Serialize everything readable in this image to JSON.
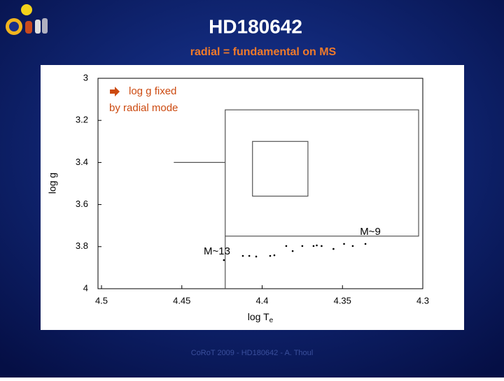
{
  "slide": {
    "title": "HD180642",
    "subtitle": "radial = fundamental on MS",
    "footer": "CoRoT 2009 - HD180642 - A. Thoul"
  },
  "chart_data": {
    "type": "scatter",
    "xlabel": "log T",
    "xlabel_sub": "e",
    "ylabel": "log g",
    "xlim": [
      4.5,
      4.3
    ],
    "xticks": [
      4.5,
      4.45,
      4.4,
      4.35,
      4.3
    ],
    "ylim": [
      3,
      4
    ],
    "yticks": [
      3,
      3.2,
      3.4,
      3.6,
      3.8,
      4
    ],
    "x": [
      4.4238,
      4.412,
      4.408,
      4.4037,
      4.395,
      4.3924,
      4.385,
      4.381,
      4.375,
      4.368,
      4.366,
      4.363,
      4.3556,
      4.349,
      4.3436,
      4.3357
    ],
    "y": [
      3.864,
      3.844,
      3.844,
      3.847,
      3.844,
      3.841,
      3.797,
      3.821,
      3.797,
      3.797,
      3.794,
      3.797,
      3.811,
      3.787,
      3.797,
      3.787
    ],
    "color": "#000000",
    "boxes": [
      {
        "x": [
          4.423,
          4.3026
        ],
        "y": [
          3.15,
          3.75
        ]
      },
      {
        "x": [
          4.406,
          4.3715
        ],
        "y": [
          3.3,
          3.56
        ]
      }
    ],
    "lines": [
      {
        "x": [
          4.455,
          4.423
        ],
        "y": [
          3.4,
          3.4
        ]
      },
      {
        "x": [
          4.423,
          4.423
        ],
        "y": [
          3.75,
          4
        ]
      }
    ],
    "annotations": [
      "M~13",
      "M~9"
    ],
    "note": [
      "log g fixed",
      "by radial mode"
    ],
    "note_color": "#cc4a10"
  }
}
